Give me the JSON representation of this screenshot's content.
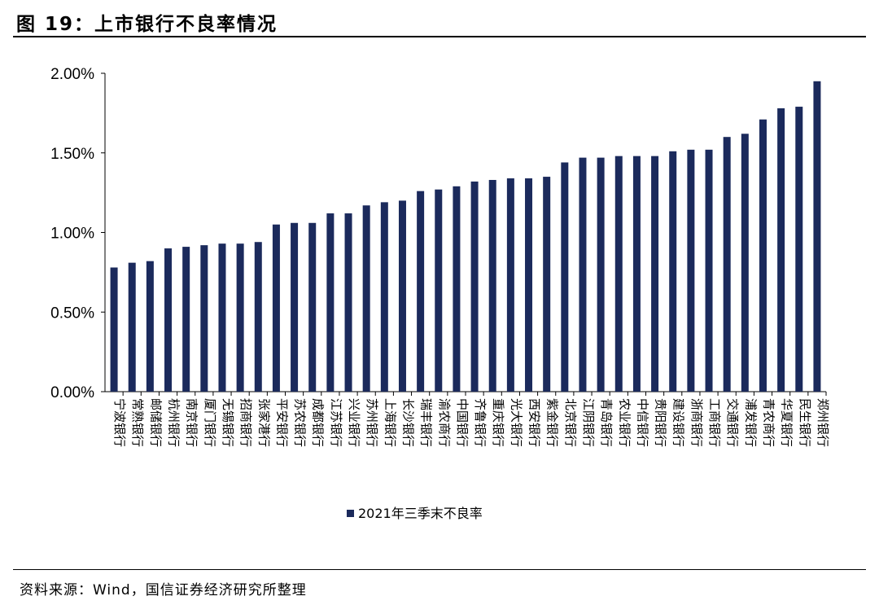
{
  "figure": {
    "title": "图 19：上市银行不良率情况",
    "source": "资料来源：Wind，国信证券经济研究所整理"
  },
  "colors": {
    "bar": "#1b2a5c",
    "axis": "#000000"
  },
  "chart_data": {
    "type": "bar",
    "title": "",
    "xlabel": "",
    "ylabel": "",
    "ylim": [
      0,
      2.0
    ],
    "yticks": [
      "0.00%",
      "0.50%",
      "1.00%",
      "1.50%",
      "2.00%"
    ],
    "yunit": "%",
    "grid": false,
    "legend_position": "bottom",
    "categories": [
      "宁波银行",
      "常熟银行",
      "邮储银行",
      "杭州银行",
      "南京银行",
      "厦门银行",
      "无锡银行",
      "招商银行",
      "张家港行",
      "平安银行",
      "苏农银行",
      "成都银行",
      "江苏银行",
      "兴业银行",
      "苏州银行",
      "上海银行",
      "长沙银行",
      "瑞丰银行",
      "渝农商行",
      "中国银行",
      "齐鲁银行",
      "重庆银行",
      "光大银行",
      "西安银行",
      "紫金银行",
      "北京银行",
      "江阴银行",
      "青岛银行",
      "农业银行",
      "中信银行",
      "贵阳银行",
      "建设银行",
      "浙商银行",
      "工商银行",
      "交通银行",
      "浦发银行",
      "青农商行",
      "华夏银行",
      "民生银行",
      "郑州银行"
    ],
    "series": [
      {
        "name": "2021年三季末不良率",
        "values": [
          0.78,
          0.81,
          0.82,
          0.9,
          0.91,
          0.92,
          0.93,
          0.93,
          0.94,
          1.05,
          1.06,
          1.06,
          1.12,
          1.12,
          1.17,
          1.19,
          1.2,
          1.26,
          1.27,
          1.29,
          1.32,
          1.33,
          1.34,
          1.34,
          1.35,
          1.44,
          1.47,
          1.47,
          1.48,
          1.48,
          1.48,
          1.51,
          1.52,
          1.52,
          1.6,
          1.62,
          1.71,
          1.78,
          1.79,
          1.95
        ]
      }
    ]
  }
}
